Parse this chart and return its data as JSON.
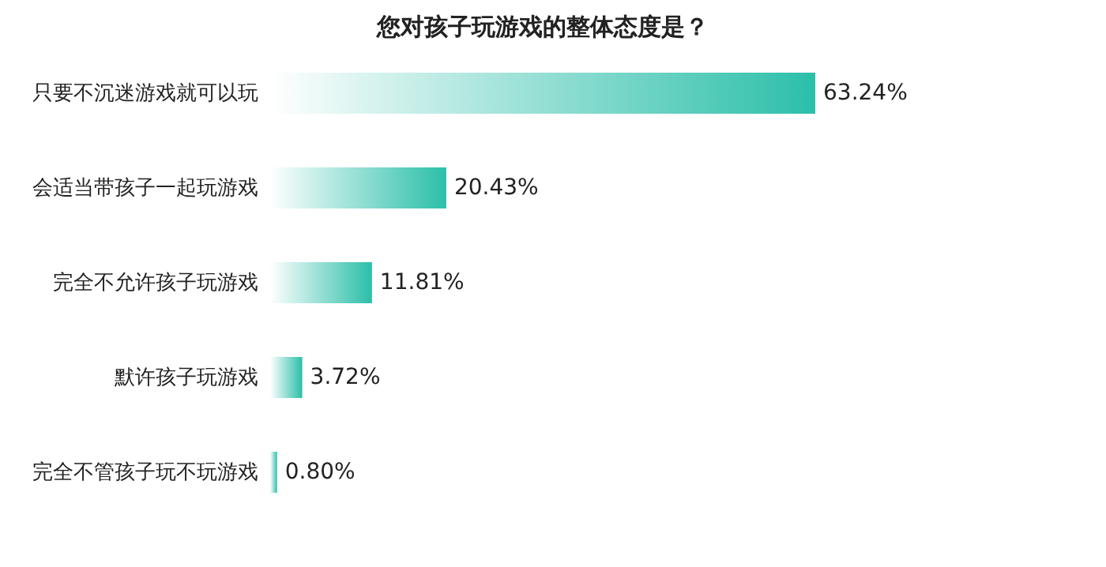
{
  "chart_data": {
    "type": "bar",
    "orientation": "horizontal",
    "title": "您对孩子玩游戏的整体态度是？",
    "categories": [
      "只要不沉迷游戏就可以玩",
      "会适当带孩子一起玩游戏",
      "完全不允许孩子玩游戏",
      "默许孩子玩游戏",
      "完全不管孩子玩不玩游戏"
    ],
    "values": [
      63.24,
      20.43,
      11.81,
      3.72,
      0.8
    ],
    "value_labels": [
      "63.24%",
      "20.43%",
      "11.81%",
      "3.72%",
      "0.80%"
    ],
    "color": "#2bbfa9",
    "grid": false
  }
}
